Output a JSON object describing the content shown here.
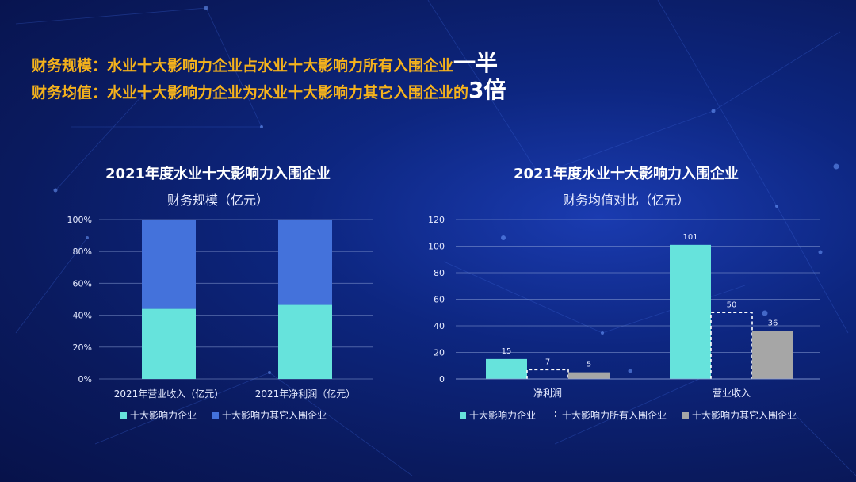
{
  "headlines": [
    {
      "label": "财务规模：",
      "text": "水业十大影响力企业占水业十大影响力所有入围企业",
      "emph": "一半"
    },
    {
      "label": "财务均值：",
      "text": "水业十大影响力企业为水业十大影响力其它入围企业的",
      "emph": "3倍"
    }
  ],
  "colors": {
    "top10": "#66e3dc",
    "others_blue": "#4472db",
    "others_gray": "#a6a6a6",
    "all": "#ffffff",
    "headline": "#f5b21c"
  },
  "chart_data": [
    {
      "type": "bar",
      "stacked": "percent",
      "title": "2021年度水业十大影响力入围企业",
      "subtitle": "财务规模（亿元）",
      "categories": [
        "2021年营业收入（亿元）",
        "2021年净利润（亿元）"
      ],
      "series": [
        {
          "name": "十大影响力企业",
          "values": [
            44,
            46.5
          ]
        },
        {
          "name": "十大影响力其它入围企业",
          "values": [
            56,
            53.5
          ]
        }
      ],
      "yticks": [
        "0%",
        "20%",
        "40%",
        "60%",
        "80%",
        "100%"
      ],
      "ylim": [
        0,
        100
      ],
      "legend": "bottom"
    },
    {
      "type": "bar",
      "title": "2021年度水业十大影响力入围企业",
      "subtitle": "财务均值对比（亿元）",
      "categories": [
        "净利润",
        "营业收入"
      ],
      "series": [
        {
          "name": "十大影响力企业",
          "values": [
            15,
            101
          ],
          "labels": [
            "15",
            "101"
          ]
        },
        {
          "name": "十大影响力所有入围企业",
          "values": [
            7,
            50
          ],
          "labels": [
            "7",
            "50"
          ],
          "style": "dashed"
        },
        {
          "name": "十大影响力其它入围企业",
          "values": [
            5,
            36
          ],
          "labels": [
            "5",
            "36"
          ]
        }
      ],
      "yticks": [
        "0",
        "20",
        "40",
        "60",
        "80",
        "100",
        "120"
      ],
      "ylim": [
        0,
        120
      ],
      "legend": "bottom"
    }
  ]
}
